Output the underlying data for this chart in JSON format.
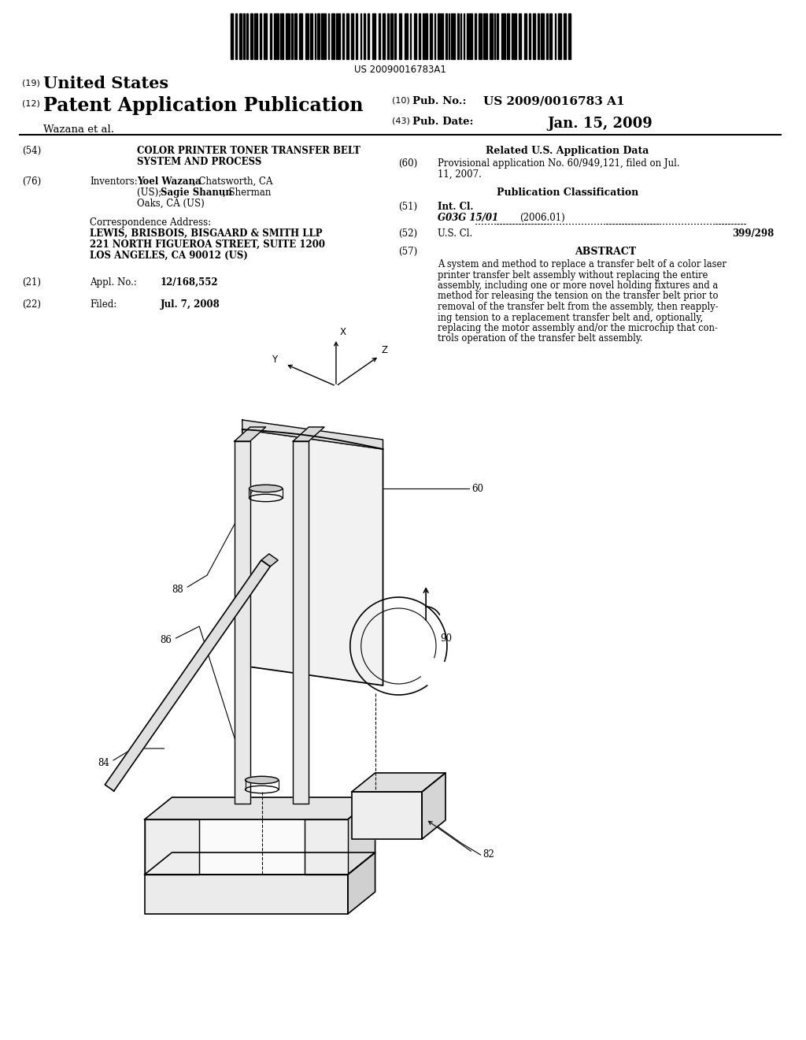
{
  "background_color": "#ffffff",
  "barcode_text": "US 20090016783A1",
  "title_19_text": "United States",
  "title_12_text": "Patent Application Publication",
  "pub_no_label": "Pub. No.:",
  "pub_no_value": "US 2009/0016783 A1",
  "pub_date_label": "Pub. Date:",
  "pub_date_value": "Jan. 15, 2009",
  "author_label": "Wazana et al.",
  "related_header": "Related U.S. Application Data",
  "pub_class_header": "Publication Classification",
  "field51_key": "Int. Cl.",
  "field51_class": "G03G 15/01",
  "field51_year": "(2006.01)",
  "field52_key": "U.S. Cl.",
  "field52_value": "399/298",
  "field57_header": "ABSTRACT",
  "abstract_lines": [
    "A system and method to replace a transfer belt of a color laser",
    "printer transfer belt assembly without replacing the entire",
    "assembly, including one or more novel holding fixtures and a",
    "method for releasing the tension on the transfer belt prior to",
    "removal of the transfer belt from the assembly, then reapply-",
    "ing tension to a replacement transfer belt and, optionally,",
    "replacing the motor assembly and/or the microchip that con-",
    "trols operation of the transfer belt assembly."
  ]
}
